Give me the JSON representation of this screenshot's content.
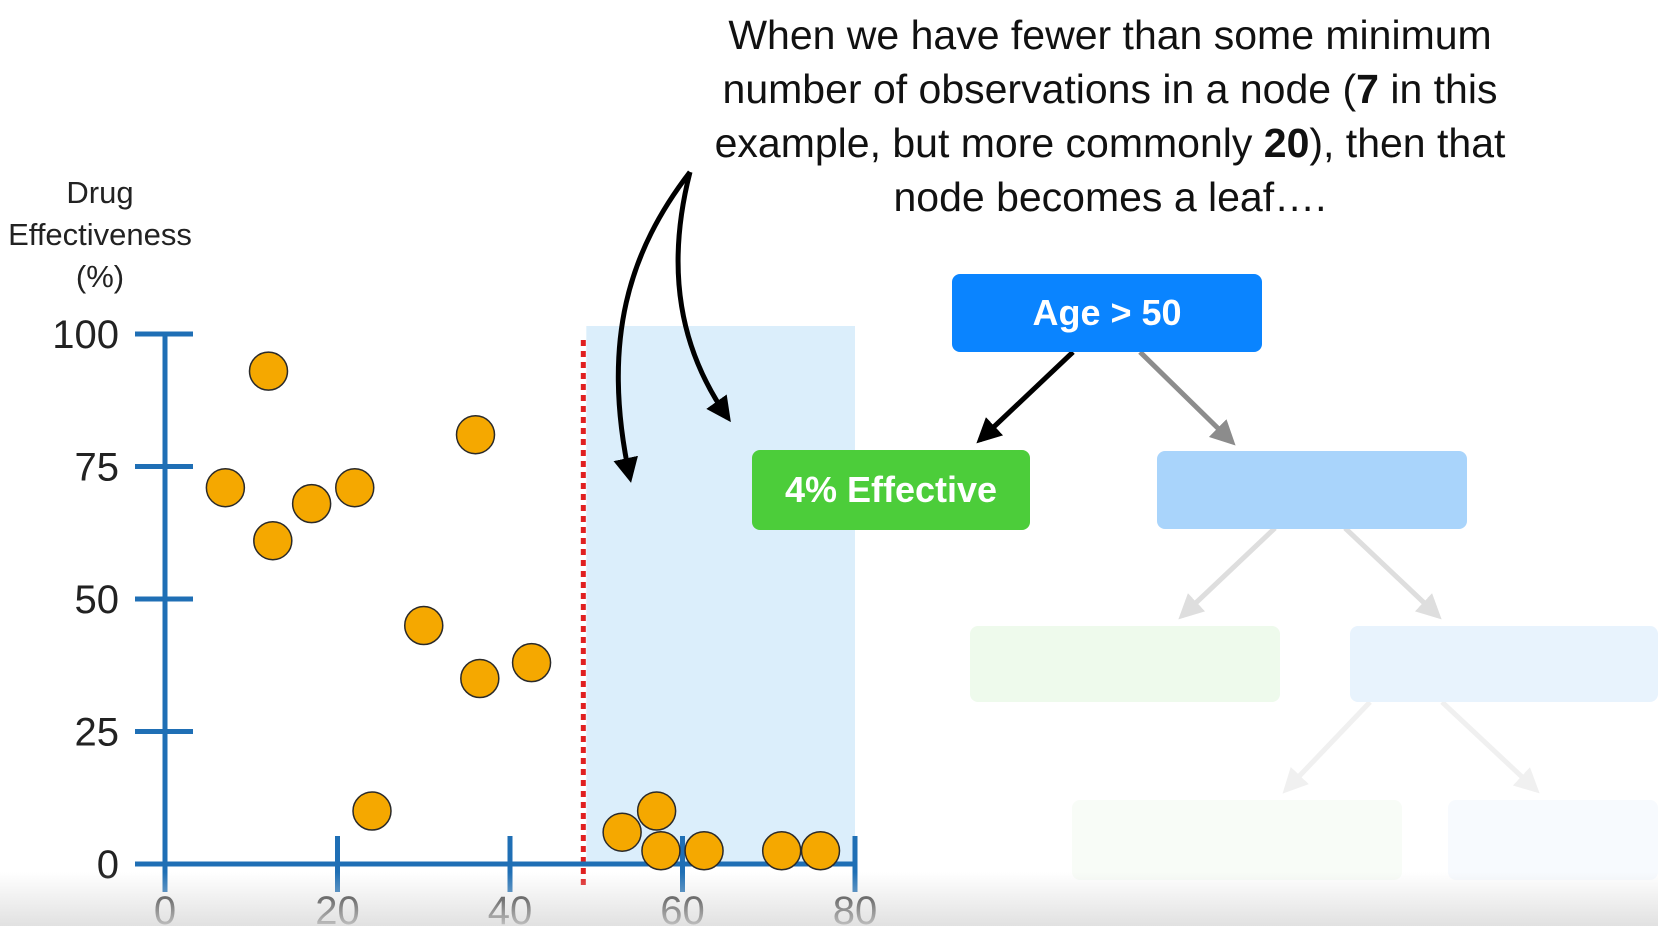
{
  "callout": {
    "line1": "When we have fewer than some minimum",
    "line2_a": "number of observations in a node (",
    "line2_bold": "7",
    "line2_b": " in this",
    "line3_a": "example, but more commonly ",
    "line3_bold": "20",
    "line3_b": "), then that",
    "line4": "node becomes a leaf…."
  },
  "tree": {
    "root_label": "Age > 50",
    "leaf_label": "4% Effective",
    "colors": {
      "root": "#0a84ff",
      "leaf": "#4ccd3a",
      "right_child": "#a9d4fb",
      "faded_green": "#eefaec",
      "faded_blue": "#e8f3fd"
    }
  },
  "chart_data": {
    "type": "scatter",
    "ylabel": [
      "Drug",
      "Effectiveness",
      "(%)"
    ],
    "xlim": [
      0,
      80
    ],
    "ylim": [
      0,
      100
    ],
    "xticks": [
      0,
      20,
      40,
      60,
      80
    ],
    "yticks": [
      0,
      25,
      50,
      75,
      100
    ],
    "split_x": 48.5,
    "highlight_range": [
      48.5,
      80
    ],
    "points": [
      {
        "x": 7,
        "y": 71
      },
      {
        "x": 12,
        "y": 93
      },
      {
        "x": 12.5,
        "y": 61
      },
      {
        "x": 17,
        "y": 68
      },
      {
        "x": 22,
        "y": 71
      },
      {
        "x": 24,
        "y": 10
      },
      {
        "x": 30,
        "y": 45
      },
      {
        "x": 36,
        "y": 81
      },
      {
        "x": 36.5,
        "y": 35
      },
      {
        "x": 42.5,
        "y": 38
      },
      {
        "x": 53,
        "y": 6
      },
      {
        "x": 57,
        "y": 10
      },
      {
        "x": 57.5,
        "y": 2.5
      },
      {
        "x": 62.5,
        "y": 2.5
      },
      {
        "x": 71.5,
        "y": 2.5
      },
      {
        "x": 76,
        "y": 2.5
      }
    ],
    "colors": {
      "axis": "#1f6fb5",
      "point_fill": "#f5a800",
      "point_stroke": "#2a2a2a",
      "split_line": "#e02020",
      "highlight": "#dbeefb"
    }
  }
}
